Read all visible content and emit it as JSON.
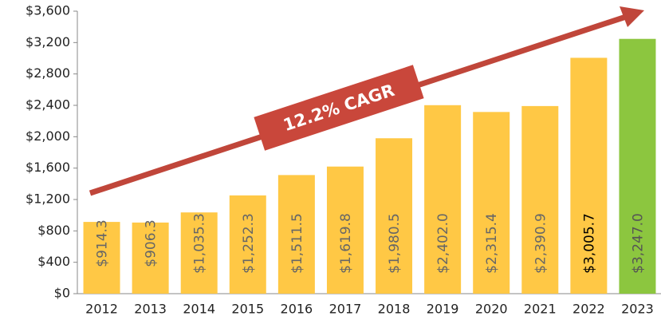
{
  "chart_data": {
    "type": "bar",
    "categories": [
      "2012",
      "2013",
      "2014",
      "2015",
      "2016",
      "2017",
      "2018",
      "2019",
      "2020",
      "2021",
      "2022",
      "2023"
    ],
    "values": [
      914.3,
      906.3,
      1035.3,
      1252.3,
      1511.5,
      1619.8,
      1980.5,
      2402.0,
      2315.4,
      2390.9,
      3005.7,
      3247.0
    ],
    "value_labels": [
      "$914.3",
      "$906.3",
      "$1,035.3",
      "$1,252.3",
      "$1,511.5",
      "$1,619.8",
      "$1,980.5",
      "$2,402.0",
      "$2,315.4",
      "$2,390.9",
      "$3,005.7",
      "$3,247.0"
    ],
    "colors": [
      "#ffc845",
      "#ffc845",
      "#ffc845",
      "#ffc845",
      "#ffc845",
      "#ffc845",
      "#ffc845",
      "#ffc845",
      "#ffc845",
      "#ffc845",
      "#ffc845",
      "#8cc63f"
    ],
    "label_colors": [
      "#666666",
      "#666666",
      "#666666",
      "#666666",
      "#666666",
      "#666666",
      "#666666",
      "#666666",
      "#666666",
      "#666666",
      "#000000",
      "#555555"
    ],
    "ylim": [
      0,
      3600
    ],
    "yticks": [
      {
        "value": 0,
        "label": "$0"
      },
      {
        "value": 400,
        "label": "$400"
      },
      {
        "value": 800,
        "label": "$800"
      },
      {
        "value": 1200,
        "label": "$1,200"
      },
      {
        "value": 1600,
        "label": "$1,600"
      },
      {
        "value": 2000,
        "label": "$2,000"
      },
      {
        "value": 2400,
        "label": "$2,400"
      },
      {
        "value": 2800,
        "label": "$2,800"
      },
      {
        "value": 3200,
        "label": "$3,200"
      },
      {
        "value": 3600,
        "label": "$3,600"
      }
    ],
    "annotation": "12.2% CAGR"
  }
}
